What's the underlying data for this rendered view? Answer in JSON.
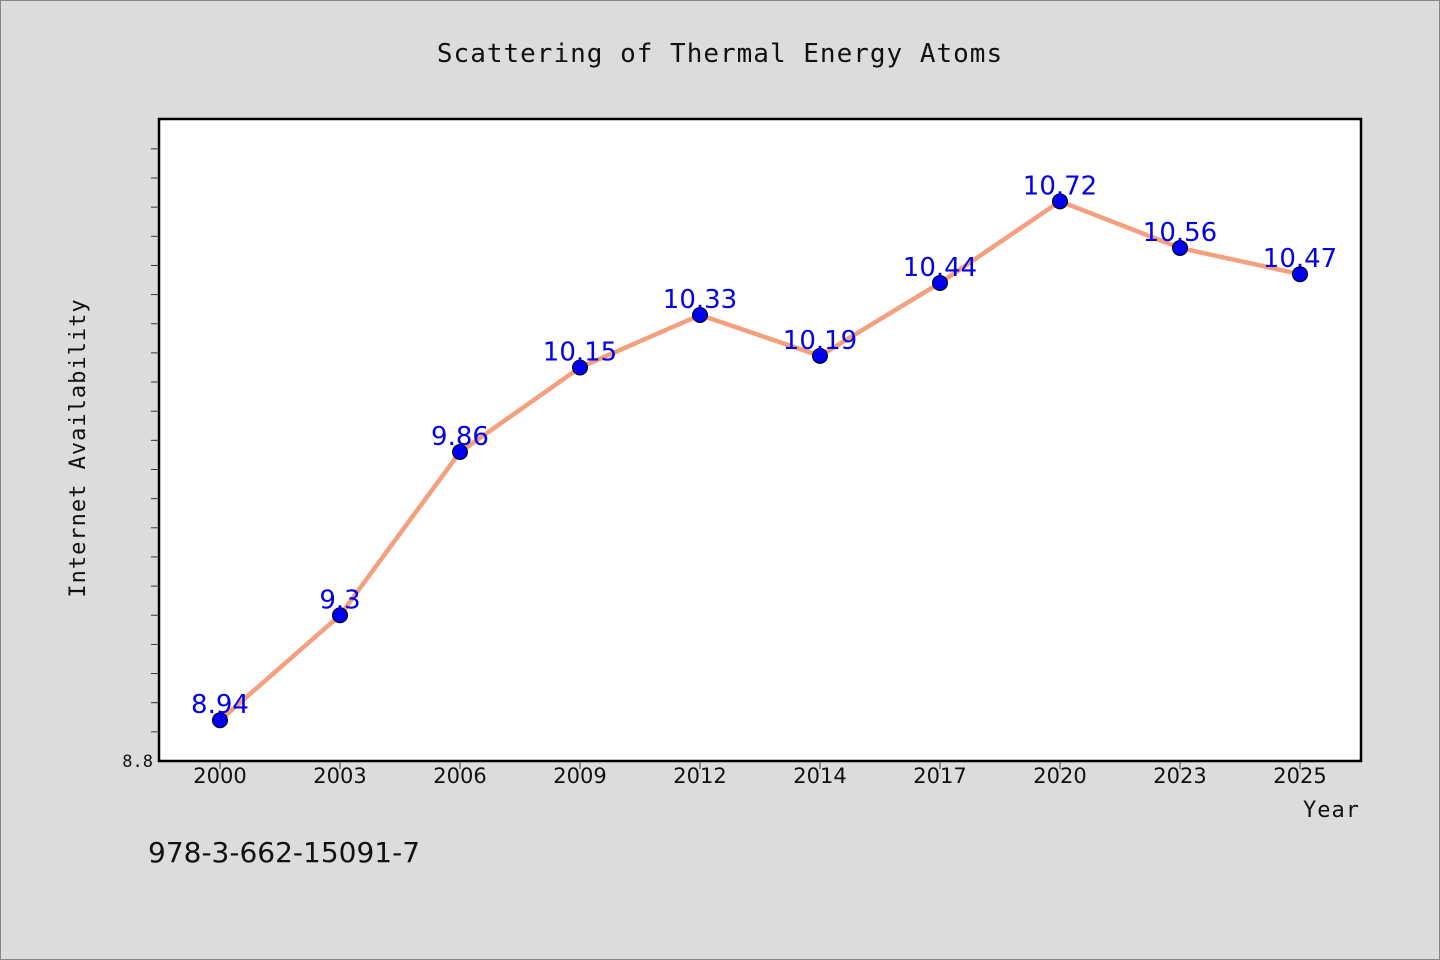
{
  "chart_data": {
    "type": "line",
    "title": "Scattering of Thermal Energy Atoms",
    "xlabel": "Year",
    "ylabel": "Internet Availability",
    "categories": [
      "2000",
      "2003",
      "2006",
      "2009",
      "2012",
      "2014",
      "2017",
      "2020",
      "2023",
      "2025"
    ],
    "series": [
      {
        "values": [
          8.94,
          9.3,
          9.86,
          10.15,
          10.33,
          10.19,
          10.44,
          10.72,
          10.56,
          10.47
        ],
        "labels": [
          "8.94",
          "9.3",
          "9.86",
          "10.15",
          "10.33",
          "10.19",
          "10.44",
          "10.72",
          "10.56",
          "10.47"
        ],
        "line_color": "#f4a07e",
        "marker_color": "#0000ee"
      }
    ],
    "ylim": [
      8.8,
      11.0
    ],
    "yticks_labeled": [
      "8.8"
    ],
    "grid": false,
    "legend": "none"
  },
  "footnote": "978-3-662-15091-7"
}
